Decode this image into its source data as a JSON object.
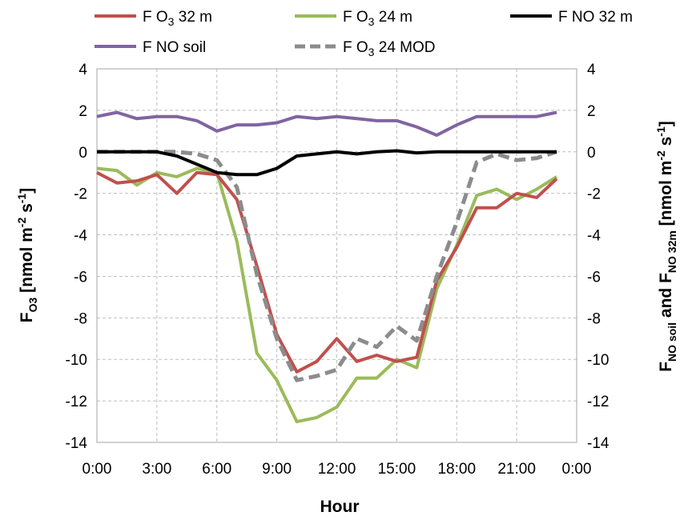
{
  "chart_data": {
    "type": "line",
    "xlabel": "Hour",
    "ylabel_left": {
      "main": "F",
      "sub": "O3",
      "tail": " [nmol m",
      "sup1": "-2",
      "mid": " s",
      "sup2": "-1",
      "end": "]"
    },
    "ylabel_right": {
      "p1": "F",
      "s1": "NO soil",
      "p2": " and  F",
      "s2": "NO 32m",
      "p3": " [nmol m",
      "sup1": "-2",
      "p4": " s",
      "sup2": "-1",
      "p5": "]"
    },
    "x_tick_labels": [
      "0:00",
      "3:00",
      "6:00",
      "9:00",
      "12:00",
      "15:00",
      "18:00",
      "21:00",
      "0:00"
    ],
    "x_tick_hours": [
      0,
      3,
      6,
      9,
      12,
      15,
      18,
      21,
      24
    ],
    "xlim": [
      0,
      24
    ],
    "y_ticks": [
      4,
      2,
      0,
      -2,
      -4,
      -6,
      -8,
      -10,
      -12,
      -14
    ],
    "ylim": [
      -14,
      4
    ],
    "grid": true,
    "legend_position": "top",
    "hours": [
      0,
      1,
      2,
      3,
      4,
      5,
      6,
      7,
      8,
      9,
      10,
      11,
      12,
      13,
      14,
      15,
      16,
      17,
      18,
      19,
      20,
      21,
      22,
      23
    ],
    "series": [
      {
        "key": "fo3_32",
        "name": {
          "pre": "F O",
          "sub": "3",
          "post": " 32 m"
        },
        "color": "#c0504d",
        "dash": false,
        "values": [
          -1.0,
          -1.5,
          -1.4,
          -1.1,
          -2.0,
          -1.0,
          -1.1,
          -2.3,
          -5.5,
          -8.8,
          -10.6,
          -10.1,
          -9.0,
          -10.1,
          -9.8,
          -10.1,
          -9.9,
          -6.2,
          -4.6,
          -2.7,
          -2.7,
          -2.0,
          -2.2,
          -1.3
        ]
      },
      {
        "key": "fo3_24",
        "name": {
          "pre": "F O",
          "sub": "3",
          "post": " 24 m"
        },
        "color": "#9bbb59",
        "dash": false,
        "values": [
          -0.8,
          -0.9,
          -1.6,
          -1.0,
          -1.2,
          -0.8,
          -1.0,
          -4.3,
          -9.7,
          -11.0,
          -13.0,
          -12.8,
          -12.3,
          -10.9,
          -10.9,
          -10.0,
          -10.4,
          -6.6,
          -4.5,
          -2.1,
          -1.8,
          -2.3,
          -1.8,
          -1.2
        ]
      },
      {
        "key": "fno_32",
        "name": {
          "pre": "F NO 32 m",
          "sub": "",
          "post": ""
        },
        "color": "#000000",
        "dash": false,
        "values": [
          0.0,
          0.0,
          0.0,
          0.0,
          -0.2,
          -0.6,
          -1.0,
          -1.1,
          -1.1,
          -0.8,
          -0.2,
          -0.1,
          0.0,
          -0.1,
          0.0,
          0.05,
          -0.05,
          0.0,
          0.0,
          0.0,
          0.0,
          0.0,
          0.0,
          0.0
        ]
      },
      {
        "key": "fno_soil",
        "name": {
          "pre": "F NO soil",
          "sub": "",
          "post": ""
        },
        "color": "#8064a2",
        "dash": false,
        "values": [
          1.7,
          1.9,
          1.6,
          1.7,
          1.7,
          1.5,
          1.0,
          1.3,
          1.3,
          1.4,
          1.7,
          1.6,
          1.7,
          1.6,
          1.5,
          1.5,
          1.2,
          0.8,
          1.3,
          1.7,
          1.7,
          1.7,
          1.7,
          1.9
        ]
      },
      {
        "key": "fo3_24_mod",
        "name": {
          "pre": "F O",
          "sub": "3",
          "post": " 24 MOD"
        },
        "color": "#8c8c8c",
        "dash": true,
        "values": [
          0.0,
          0.0,
          0.0,
          0.0,
          0.0,
          -0.1,
          -0.4,
          -1.7,
          -5.9,
          -9.0,
          -11.0,
          -10.8,
          -10.5,
          -9.0,
          -9.4,
          -8.4,
          -9.1,
          -6.0,
          -3.4,
          -0.5,
          -0.1,
          -0.4,
          -0.3,
          0.0
        ]
      }
    ]
  }
}
